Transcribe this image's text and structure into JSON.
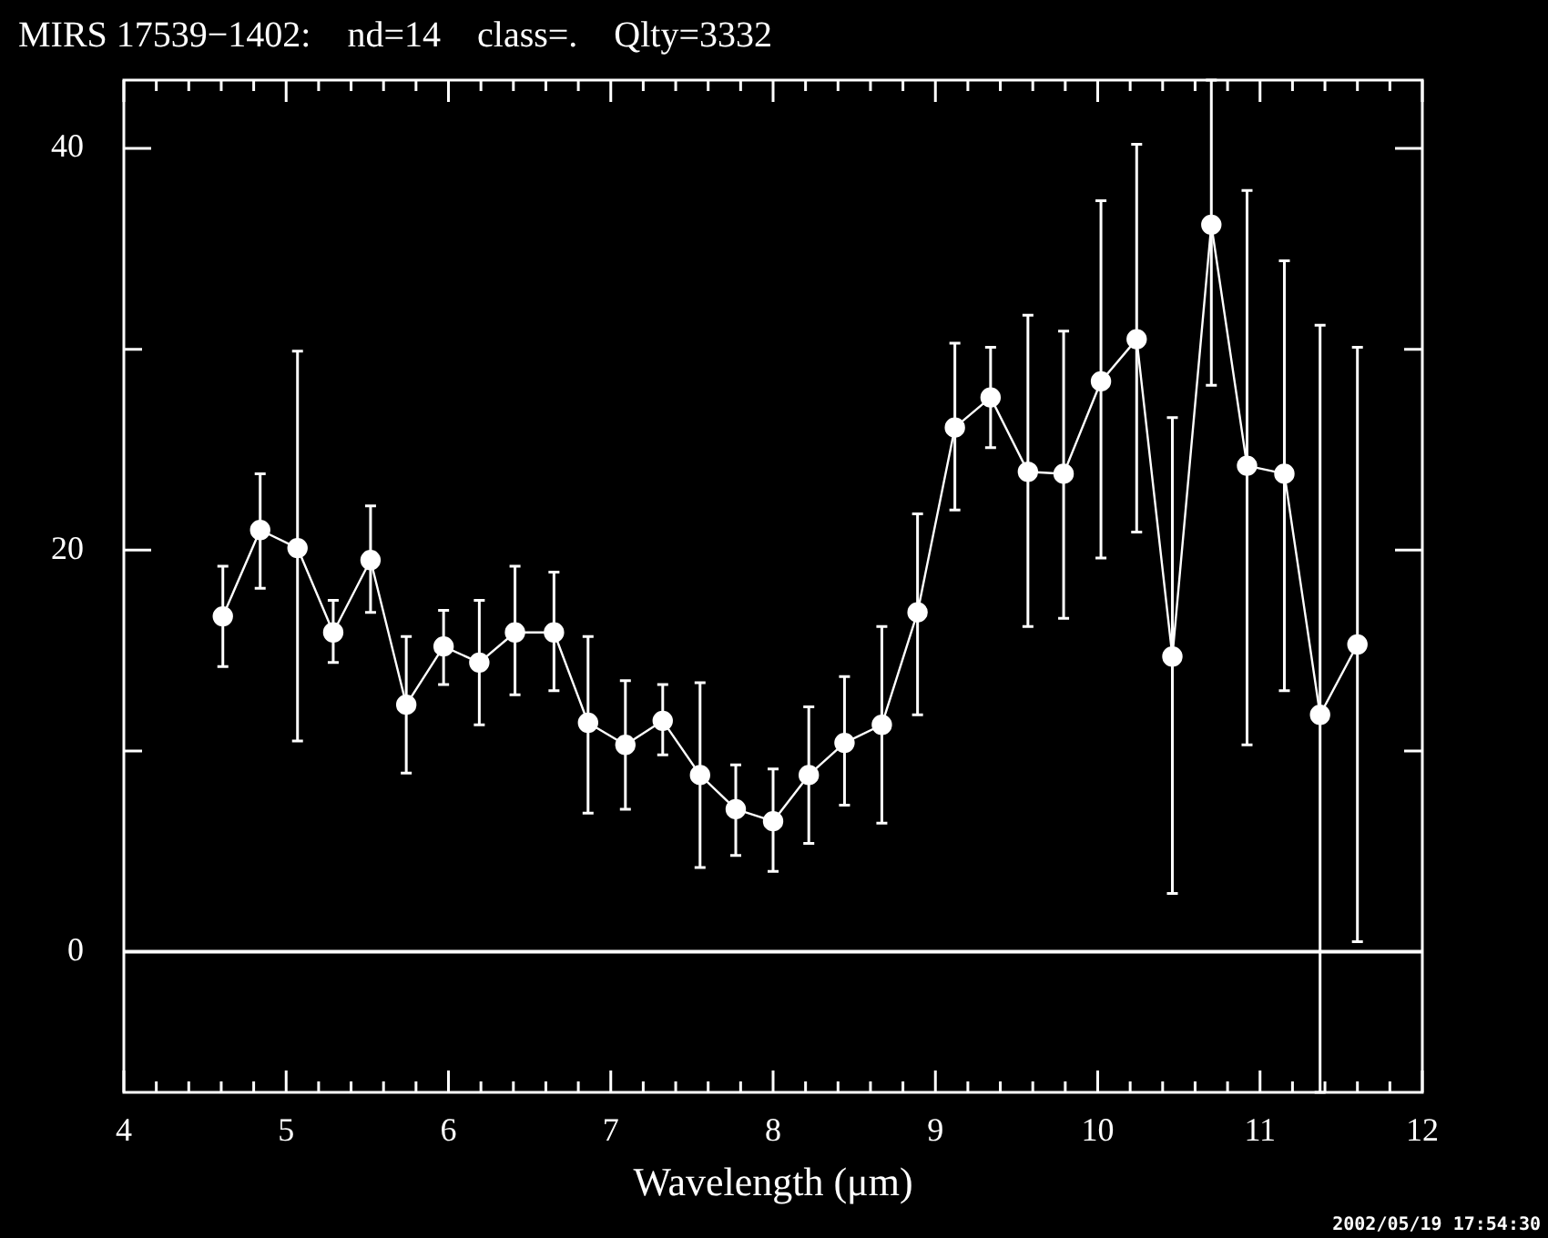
{
  "chart_data": {
    "type": "line",
    "title": "MIRS 17539−1402:    nd=14    class=.    Qlty=3332",
    "xlabel": "Wavelength (μm)",
    "x": [
      4.61,
      4.84,
      5.07,
      5.29,
      5.52,
      5.74,
      5.97,
      6.19,
      6.41,
      6.65,
      6.86,
      7.09,
      7.32,
      7.55,
      7.77,
      8.0,
      8.22,
      8.44,
      8.67,
      8.89,
      9.12,
      9.34,
      9.57,
      9.79,
      10.02,
      10.24,
      10.46,
      10.7,
      10.92,
      11.15,
      11.37,
      11.6
    ],
    "series": [
      {
        "color": "#ffffff",
        "values": [
          16.7,
          21.0,
          20.1,
          15.9,
          19.5,
          12.3,
          15.2,
          14.4,
          15.9,
          15.9,
          11.4,
          10.3,
          11.5,
          8.8,
          7.1,
          6.5,
          8.8,
          10.4,
          11.3,
          16.9,
          26.1,
          27.6,
          23.9,
          23.8,
          28.4,
          30.5,
          14.7,
          36.2,
          24.2,
          23.8,
          11.8,
          15.3
        ],
        "errors": [
          [
            14.2,
            19.2
          ],
          [
            18.1,
            23.8
          ],
          [
            10.5,
            29.9
          ],
          [
            14.4,
            17.5
          ],
          [
            16.9,
            22.2
          ],
          [
            8.9,
            15.7
          ],
          [
            13.3,
            17.0
          ],
          [
            11.3,
            17.5
          ],
          [
            12.8,
            19.2
          ],
          [
            13.0,
            18.9
          ],
          [
            6.9,
            15.7
          ],
          [
            7.1,
            13.5
          ],
          [
            9.8,
            13.3
          ],
          [
            4.2,
            13.4
          ],
          [
            4.8,
            9.3
          ],
          [
            4.0,
            9.1
          ],
          [
            5.4,
            12.2
          ],
          [
            7.3,
            13.7
          ],
          [
            6.4,
            16.2
          ],
          [
            11.8,
            21.8
          ],
          [
            22.0,
            30.3
          ],
          [
            25.1,
            30.1
          ],
          [
            16.2,
            31.7
          ],
          [
            16.6,
            30.9
          ],
          [
            19.6,
            37.4
          ],
          [
            20.9,
            40.2
          ],
          [
            2.9,
            26.6
          ],
          [
            28.2,
            43.4
          ],
          [
            10.3,
            37.9
          ],
          [
            13.0,
            34.4
          ],
          [
            -7,
            31.2
          ],
          [
            0.5,
            30.1
          ]
        ]
      }
    ],
    "xlim": [
      4,
      12
    ],
    "ylim": [
      -7,
      43.4
    ],
    "xticks": [
      4,
      {
        "value": 4.2,
        "label": null
      },
      {
        "value": 4.4,
        "label": null
      },
      {
        "value": 4.6,
        "label": null
      },
      {
        "value": 4.8,
        "label": null
      },
      5,
      {
        "value": 5.2,
        "label": null
      },
      {
        "value": 5.4,
        "label": null
      },
      {
        "value": 5.6,
        "label": null
      },
      {
        "value": 5.8,
        "label": null
      },
      6,
      {
        "value": 6.2,
        "label": null
      },
      {
        "value": 6.4,
        "label": null
      },
      {
        "value": 6.6,
        "label": null
      },
      {
        "value": 6.8,
        "label": null
      },
      7,
      {
        "value": 7.2,
        "label": null
      },
      {
        "value": 7.4,
        "label": null
      },
      {
        "value": 7.6,
        "label": null
      },
      {
        "value": 7.8,
        "label": null
      },
      8,
      {
        "value": 8.2,
        "label": null
      },
      {
        "value": 8.4,
        "label": null
      },
      {
        "value": 8.6,
        "label": null
      },
      {
        "value": 8.8,
        "label": null
      },
      9,
      {
        "value": 9.2,
        "label": null
      },
      {
        "value": 9.4,
        "label": null
      },
      {
        "value": 9.6,
        "label": null
      },
      {
        "value": 9.8,
        "label": null
      },
      10,
      {
        "value": 10.2,
        "label": null
      },
      {
        "value": 10.4,
        "label": null
      },
      {
        "value": 10.6,
        "label": null
      },
      {
        "value": 10.8,
        "label": null
      },
      11,
      {
        "value": 11.2,
        "label": null
      },
      {
        "value": 11.4,
        "label": null
      },
      {
        "value": 11.6,
        "label": null
      },
      {
        "value": 11.8,
        "label": null
      },
      12
    ],
    "yticks": [
      0,
      {
        "value": 10,
        "label": null
      },
      20,
      {
        "value": 30,
        "label": null
      },
      40
    ],
    "marker": "circle",
    "ref_lines": [
      {
        "axis": "y",
        "value": 0,
        "color": "#ffffff"
      }
    ],
    "annotations": [
      "2002/05/19 17:54:30"
    ]
  }
}
